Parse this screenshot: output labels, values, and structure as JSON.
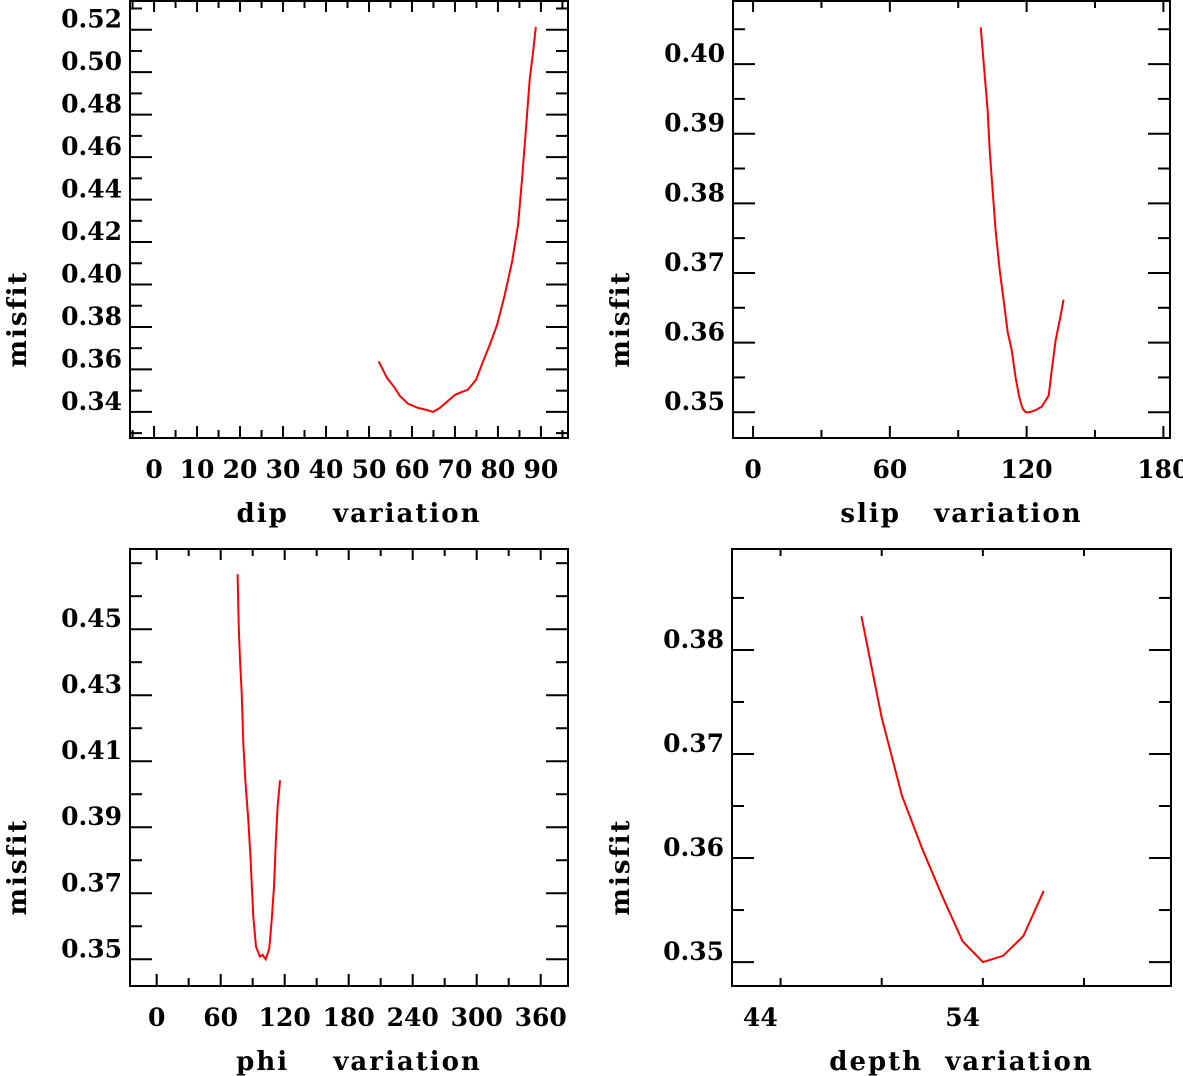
{
  "chart_data": [
    {
      "type": "line",
      "xlabel": "dip    variation",
      "ylabel": "misfit",
      "xlim": [
        -5.6,
        96.3
      ],
      "ylim": [
        0.3277,
        0.534
      ],
      "xticks": {
        "labels": [
          0,
          10,
          20,
          30,
          40,
          50,
          60,
          70,
          80,
          90
        ],
        "minor_step": 5
      },
      "yticks": {
        "labels": [
          "0.34",
          "0.36",
          "0.38",
          "0.40",
          "0.42",
          "0.44",
          "0.46",
          "0.48",
          "0.50",
          "0.52"
        ],
        "minor_step": 0.01
      },
      "series": [
        {
          "name": "misfit",
          "color": "#ff0000",
          "x": [
            52.3,
            54.2,
            56.0,
            57.2,
            59.1,
            61.4,
            63.5,
            64.9,
            66.5,
            68.1,
            70.0,
            71.6,
            73.0,
            74.9,
            76.5,
            78.1,
            79.8,
            81.6,
            83.3,
            84.7,
            85.6,
            86.5,
            87.4,
            88.1,
            88.8
          ],
          "y": [
            0.3636,
            0.356,
            0.3513,
            0.3475,
            0.3438,
            0.3419,
            0.3409,
            0.34,
            0.3419,
            0.3447,
            0.348,
            0.3494,
            0.3504,
            0.3551,
            0.3636,
            0.3716,
            0.381,
            0.3952,
            0.4108,
            0.4282,
            0.4494,
            0.473,
            0.4966,
            0.5084,
            0.5211
          ]
        }
      ]
    },
    {
      "type": "line",
      "xlabel": "slip   variation",
      "ylabel": "misfit",
      "xlim": [
        -8.8,
        182.9
      ],
      "ylim": [
        0.3463,
        0.4092
      ],
      "xticks": {
        "labels": [
          0,
          60,
          120,
          180
        ],
        "minor_step": 30
      },
      "yticks": {
        "labels": [
          "0.35",
          "0.36",
          "0.37",
          "0.38",
          "0.39",
          "0.40"
        ],
        "minor_step": 0.005
      },
      "series": [
        {
          "name": "misfit",
          "color": "#ff0000",
          "x": [
            99.9,
            100.7,
            101.6,
            102.9,
            103.8,
            105.1,
            106.4,
            108.2,
            109.9,
            111.7,
            113.4,
            115.2,
            116.9,
            118.3,
            119.6,
            121.3,
            124.0,
            126.6,
            129.7,
            131.0,
            132.7,
            134.5,
            136.2
          ],
          "y": [
            0.4052,
            0.402,
            0.3984,
            0.3934,
            0.3876,
            0.3819,
            0.3761,
            0.3704,
            0.3661,
            0.3615,
            0.359,
            0.3549,
            0.352,
            0.3505,
            0.35,
            0.35,
            0.3503,
            0.3508,
            0.3524,
            0.356,
            0.3603,
            0.3632,
            0.3661
          ]
        }
      ]
    },
    {
      "type": "line",
      "xlabel": "phi    variation",
      "ylabel": "misfit",
      "xlim": [
        -25,
        385.6
      ],
      "ylim": [
        0.3419,
        0.4746
      ],
      "xticks": {
        "labels": [
          0,
          60,
          120,
          180,
          240,
          300,
          360
        ],
        "minor_step": 30
      },
      "yticks": {
        "labels": [
          "0.35",
          "0.37",
          "0.39",
          "0.41",
          "0.43",
          "0.45"
        ],
        "minor_step": 0.01
      },
      "series": [
        {
          "name": "misfit",
          "color": "#ff0000",
          "x": [
            75.9,
            76.9,
            78.1,
            79.7,
            81.2,
            83.1,
            85.9,
            88.1,
            90.6,
            93.1,
            96.8,
            99.4,
            102.2,
            105.6,
            107.8,
            110.0,
            111.8,
            113.4,
            115.6
          ],
          "y": [
            0.4665,
            0.4513,
            0.4407,
            0.4306,
            0.4155,
            0.4043,
            0.3922,
            0.3801,
            0.3629,
            0.3538,
            0.3508,
            0.3513,
            0.35,
            0.3533,
            0.3619,
            0.372,
            0.3862,
            0.3962,
            0.4041
          ]
        }
      ]
    },
    {
      "type": "line",
      "xlabel": "depth  variation",
      "ylabel": "misfit",
      "xlim": [
        42.6,
        64.3
      ],
      "ylim": [
        0.3477,
        0.3898
      ],
      "xticks": {
        "labels": [
          44,
          54
        ],
        "minor_step": 5
      },
      "yticks": {
        "labels": [
          "0.35",
          "0.36",
          "0.37",
          "0.38"
        ],
        "minor_step": 0.005
      },
      "series": [
        {
          "name": "misfit",
          "color": "#ff0000",
          "x": [
            49,
            50,
            51,
            52,
            53,
            54,
            55,
            56,
            57,
            58
          ],
          "y": [
            0.3832,
            0.3735,
            0.366,
            0.3609,
            0.3563,
            0.352,
            0.35,
            0.3506,
            0.3525,
            0.3568
          ]
        }
      ]
    }
  ]
}
